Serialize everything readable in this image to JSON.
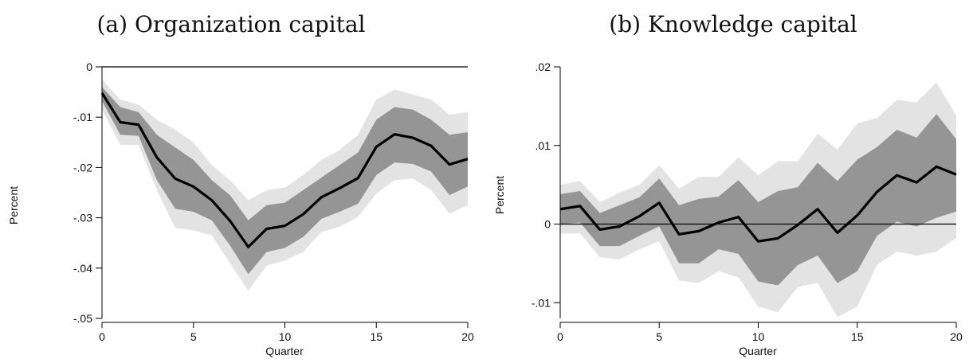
{
  "chart_data": [
    {
      "type": "area",
      "title": "(a) Organization capital",
      "xlabel": "Quarter",
      "ylabel": "Percent",
      "xlim": [
        0,
        20
      ],
      "ylim": [
        -0.05,
        0
      ],
      "x_ticks": [
        0,
        5,
        10,
        15,
        20
      ],
      "x_tick_labels": [
        "0",
        "5",
        "10",
        "15",
        "20"
      ],
      "y_ticks": [
        0,
        -0.01,
        -0.02,
        -0.03,
        -0.04,
        -0.05
      ],
      "y_tick_labels": [
        "0",
        "-.01",
        "-.02",
        "-.03",
        "-.04",
        "-.05"
      ],
      "zero_line": true,
      "grid": false,
      "x": [
        0,
        1,
        2,
        3,
        4,
        5,
        6,
        7,
        8,
        9,
        10,
        11,
        12,
        13,
        14,
        15,
        16,
        17,
        18,
        19,
        20
      ],
      "series": [
        {
          "role": "outer_band_upper",
          "values": [
            -0.0025,
            -0.0065,
            -0.0075,
            -0.0105,
            -0.0125,
            -0.015,
            -0.0195,
            -0.0225,
            -0.0265,
            -0.0245,
            -0.024,
            -0.0215,
            -0.0185,
            -0.0165,
            -0.0135,
            -0.0065,
            -0.0045,
            -0.0055,
            -0.0065,
            -0.0095,
            -0.009
          ]
        },
        {
          "role": "inner_band_upper",
          "values": [
            -0.004,
            -0.008,
            -0.009,
            -0.0135,
            -0.016,
            -0.0185,
            -0.0225,
            -0.0255,
            -0.0305,
            -0.0275,
            -0.027,
            -0.0245,
            -0.022,
            -0.0195,
            -0.017,
            -0.0105,
            -0.008,
            -0.0085,
            -0.0105,
            -0.0135,
            -0.013
          ]
        },
        {
          "role": "point_estimate",
          "values": [
            -0.0052,
            -0.011,
            -0.0115,
            -0.018,
            -0.0222,
            -0.0238,
            -0.0265,
            -0.0306,
            -0.0358,
            -0.0322,
            -0.0316,
            -0.0293,
            -0.0259,
            -0.0241,
            -0.0221,
            -0.0159,
            -0.0134,
            -0.0141,
            -0.0157,
            -0.0194,
            -0.0183
          ]
        },
        {
          "role": "inner_band_lower",
          "values": [
            -0.0068,
            -0.0135,
            -0.0137,
            -0.0225,
            -0.0282,
            -0.0288,
            -0.0305,
            -0.0355,
            -0.0412,
            -0.0368,
            -0.036,
            -0.0338,
            -0.0302,
            -0.0288,
            -0.0272,
            -0.0215,
            -0.019,
            -0.0193,
            -0.0208,
            -0.0255,
            -0.0238
          ]
        },
        {
          "role": "outer_band_lower",
          "values": [
            -0.0085,
            -0.0155,
            -0.0155,
            -0.0245,
            -0.032,
            -0.0325,
            -0.0335,
            -0.039,
            -0.0445,
            -0.0395,
            -0.0385,
            -0.0368,
            -0.0328,
            -0.0318,
            -0.0298,
            -0.0252,
            -0.0225,
            -0.0222,
            -0.0245,
            -0.0292,
            -0.0275
          ]
        }
      ],
      "colors": {
        "outer_band": "#e3e3e3",
        "inner_band": "#959595",
        "line": "#000000"
      }
    },
    {
      "type": "area",
      "title": "(b) Knowledge capital",
      "xlabel": "Quarter",
      "ylabel": "Percent",
      "xlim": [
        0,
        20
      ],
      "ylim": [
        -0.012,
        0.02
      ],
      "x_ticks": [
        0,
        5,
        10,
        15,
        20
      ],
      "x_tick_labels": [
        "0",
        "5",
        "10",
        "15",
        "20"
      ],
      "y_ticks": [
        0.02,
        0.01,
        0,
        -0.01
      ],
      "y_tick_labels": [
        ".02",
        ".01",
        "0",
        "-.01"
      ],
      "zero_line": true,
      "grid": false,
      "x": [
        0,
        1,
        2,
        3,
        4,
        5,
        6,
        7,
        8,
        9,
        10,
        11,
        12,
        13,
        14,
        15,
        16,
        17,
        18,
        19,
        20
      ],
      "series": [
        {
          "role": "outer_band_upper",
          "values": [
            0.005,
            0.0055,
            0.0028,
            0.004,
            0.005,
            0.0075,
            0.0045,
            0.006,
            0.006,
            0.0085,
            0.0062,
            0.008,
            0.008,
            0.0115,
            0.0095,
            0.0128,
            0.0135,
            0.0158,
            0.0155,
            0.018,
            0.0138
          ]
        },
        {
          "role": "inner_band_upper",
          "values": [
            0.0038,
            0.0042,
            0.0014,
            0.0024,
            0.0034,
            0.0058,
            0.0024,
            0.0032,
            0.0035,
            0.0056,
            0.0028,
            0.0042,
            0.0047,
            0.0078,
            0.0055,
            0.0082,
            0.0098,
            0.012,
            0.011,
            0.014,
            0.0108
          ]
        },
        {
          "role": "point_estimate",
          "values": [
            0.0019,
            0.0023,
            -0.0007,
            -0.0003,
            0.001,
            0.0027,
            -0.0013,
            -0.0009,
            0.0002,
            0.0009,
            -0.0022,
            -0.0018,
            -0.0001,
            0.0019,
            -0.0011,
            0.0011,
            0.0041,
            0.0062,
            0.0053,
            0.0073,
            0.0063
          ]
        },
        {
          "role": "inner_band_lower",
          "values": [
            0.0,
            0.0002,
            -0.0028,
            -0.0028,
            -0.0015,
            -0.0003,
            -0.005,
            -0.005,
            -0.0032,
            -0.0038,
            -0.0073,
            -0.0078,
            -0.0052,
            -0.004,
            -0.0075,
            -0.006,
            -0.0015,
            0.0003,
            -0.0003,
            0.0008,
            0.0016
          ]
        },
        {
          "role": "outer_band_lower",
          "values": [
            -0.0012,
            -0.0012,
            -0.0042,
            -0.0045,
            -0.0032,
            -0.0022,
            -0.0072,
            -0.0075,
            -0.006,
            -0.0068,
            -0.0105,
            -0.0112,
            -0.008,
            -0.0075,
            -0.0118,
            -0.0105,
            -0.0052,
            -0.0035,
            -0.004,
            -0.0035,
            -0.0018
          ]
        }
      ],
      "colors": {
        "outer_band": "#e3e3e3",
        "inner_band": "#959595",
        "line": "#000000"
      }
    }
  ]
}
